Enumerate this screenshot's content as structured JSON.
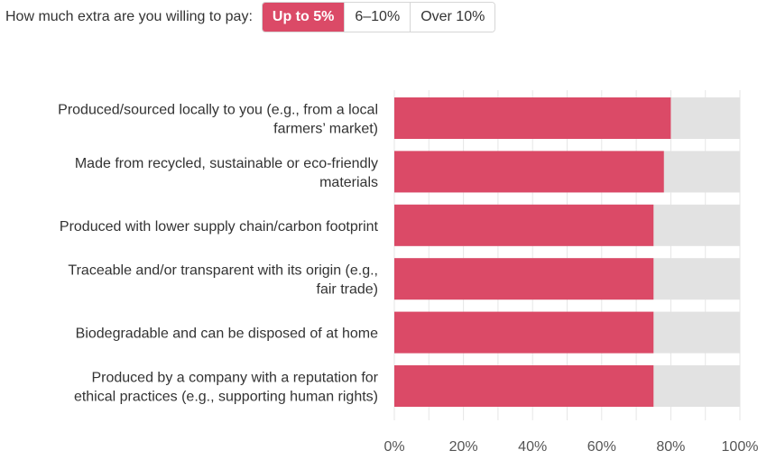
{
  "filter": {
    "label": "How much extra are you willing to pay:",
    "options": [
      "Up to 5%",
      "6–10%",
      "Over 10%"
    ],
    "selected": "Up to 5%"
  },
  "colors": {
    "accent": "#db4a67",
    "bar": "#db4a67",
    "remainder": "#e2e2e2",
    "grid": "#e6e6e6"
  },
  "chart_data": {
    "type": "bar",
    "orientation": "horizontal",
    "stacked_to_100": true,
    "categories": [
      [
        "Produced/sourced locally to you (e.g., from a local",
        "farmers’ market)"
      ],
      [
        "Made from recycled, sustainable or eco-friendly",
        "materials"
      ],
      [
        "Produced with lower supply chain/carbon footprint"
      ],
      [
        "Traceable and/or transparent with its origin (e.g.,",
        "fair trade)"
      ],
      [
        "Biodegradable and can be disposed of at home"
      ],
      [
        "Produced by a company with a reputation for",
        "ethical practices (e.g., supporting human rights)"
      ]
    ],
    "values": [
      80,
      78,
      75,
      75,
      75,
      75
    ],
    "xlim": [
      0,
      100
    ],
    "xticks": [
      "0%",
      "20%",
      "40%",
      "60%",
      "80%",
      "100%"
    ],
    "grid": true,
    "legend": "none"
  }
}
